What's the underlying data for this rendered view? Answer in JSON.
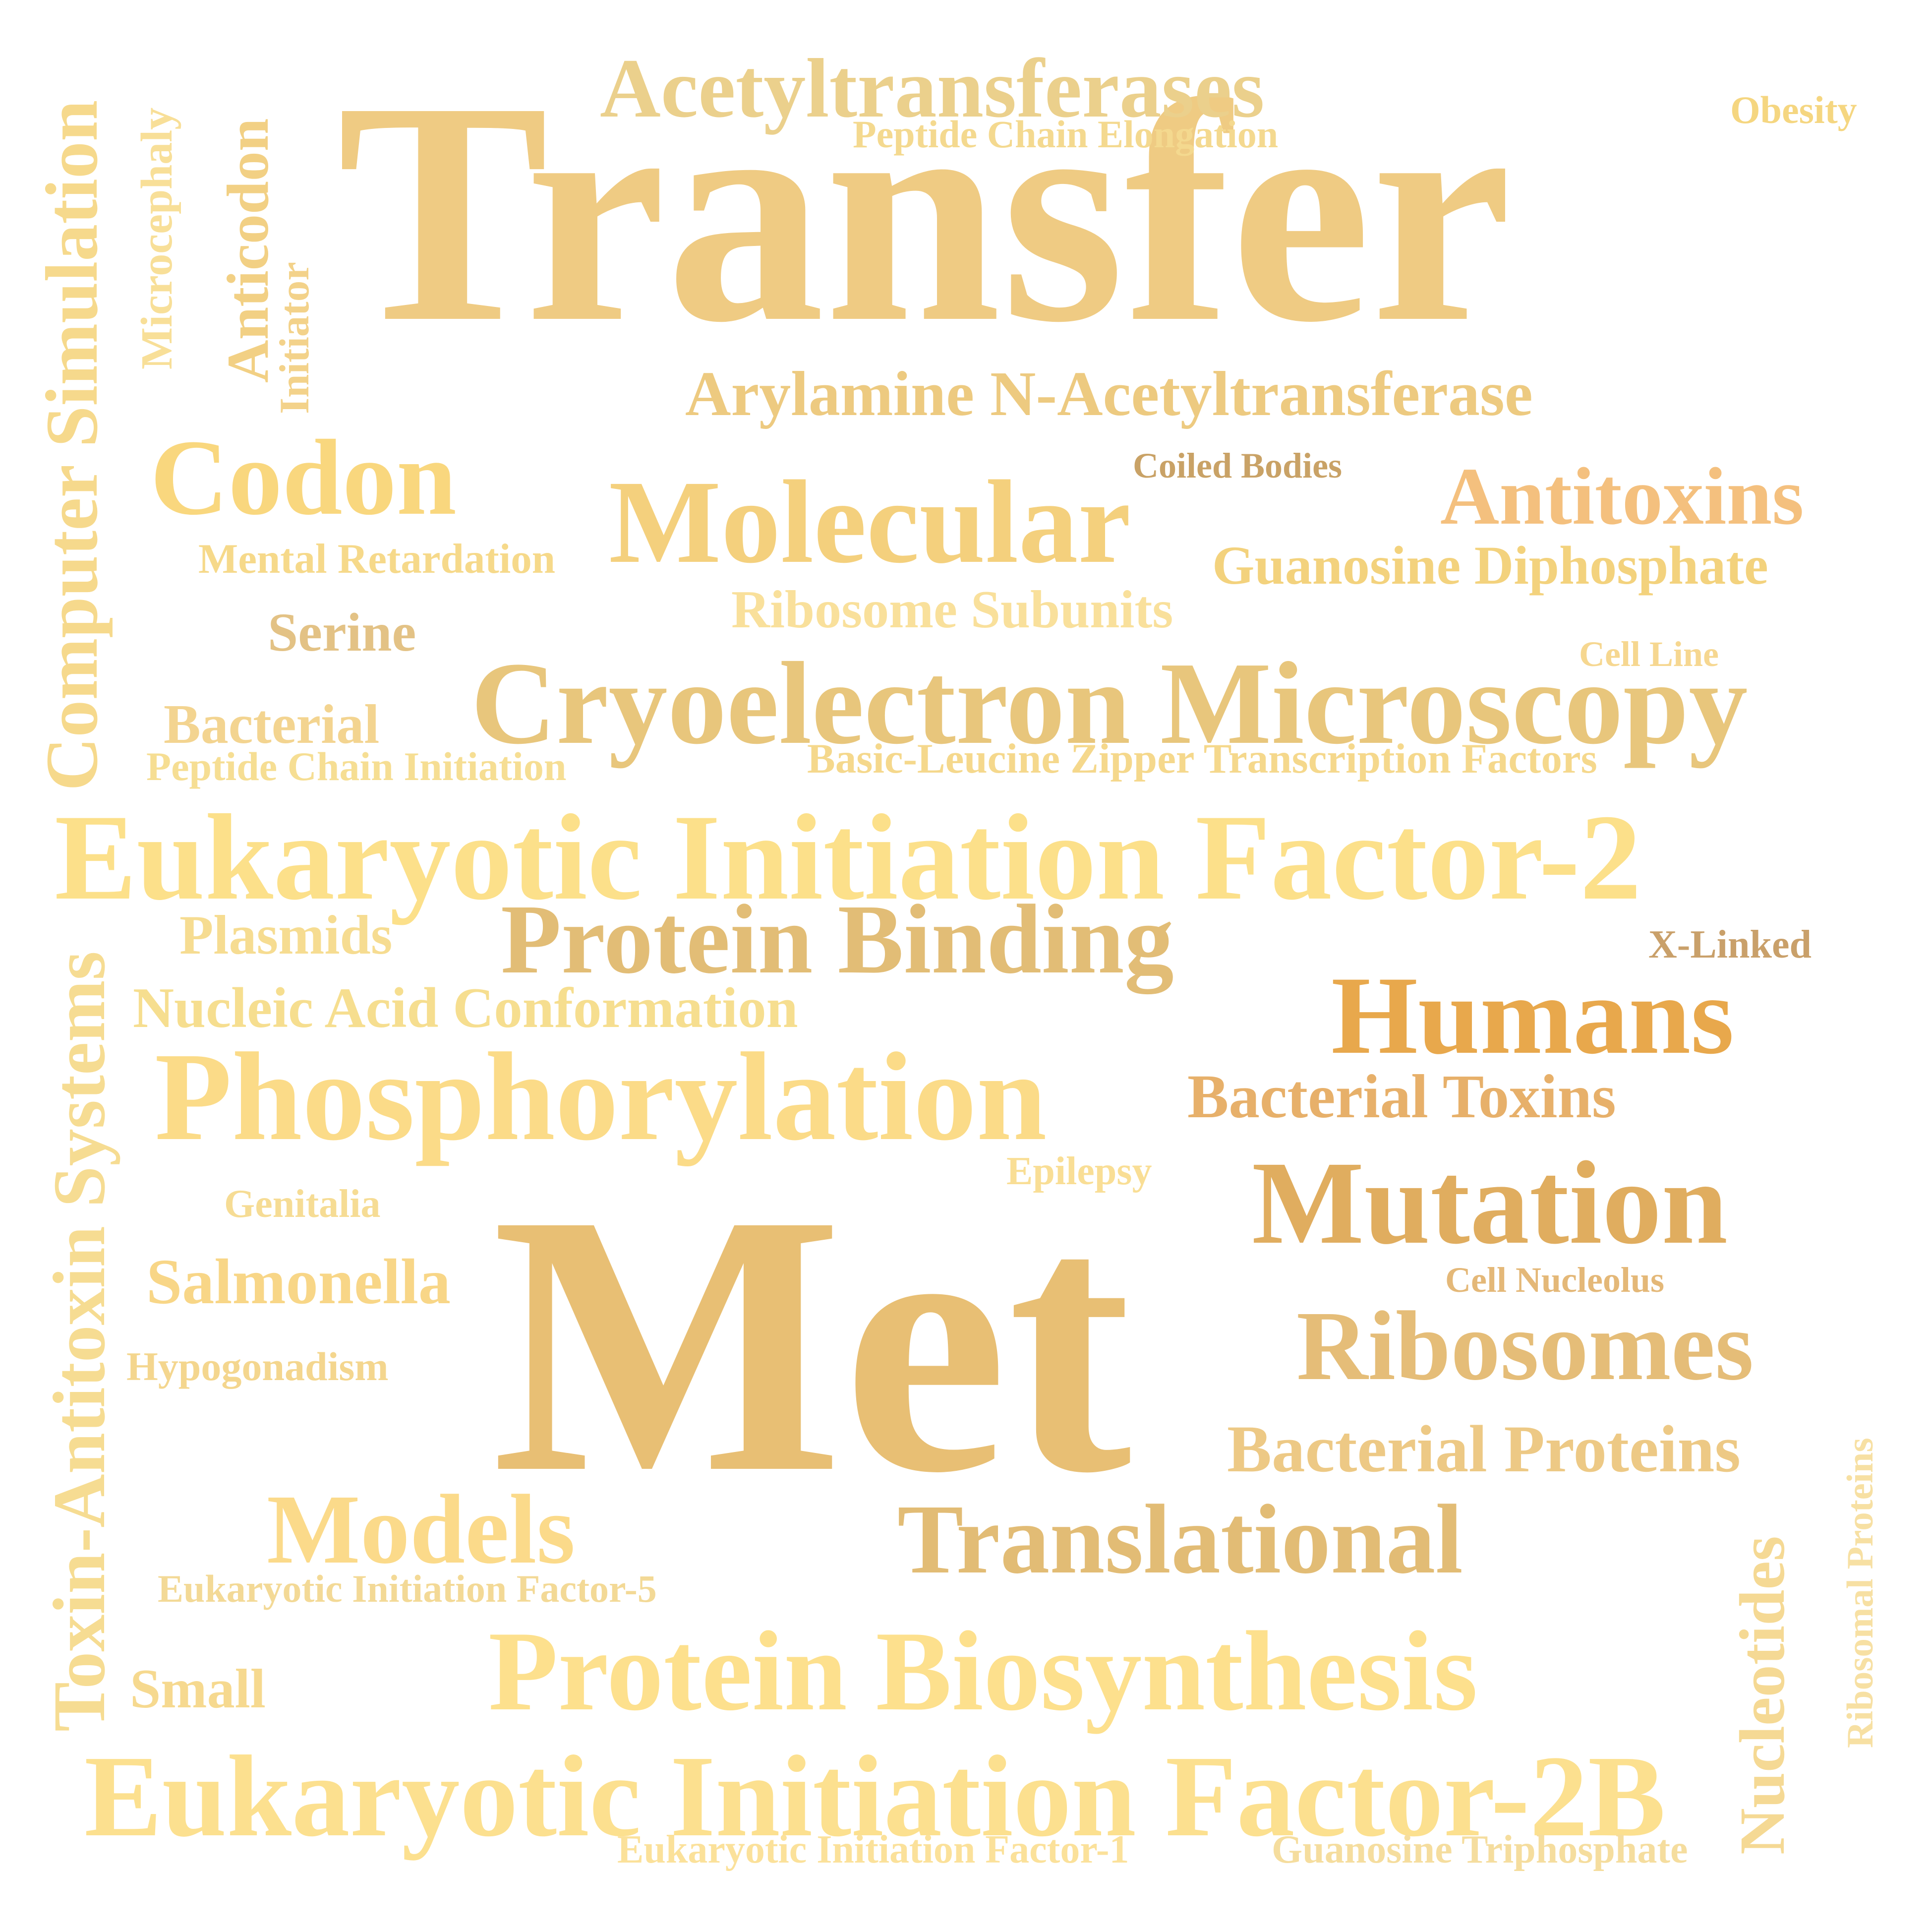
{
  "words": [
    {
      "text": "Transfer",
      "color": "#EFCB83"
    },
    {
      "text": "Met",
      "color": "#E8BF74"
    },
    {
      "text": "Acetyltransferases",
      "color": "#EBD08C"
    },
    {
      "text": "Peptide Chain Elongation",
      "color": "#F4D98F"
    },
    {
      "text": "Obesity",
      "color": "#F5D680"
    },
    {
      "text": "Arylamine N-Acetyltransferase",
      "color": "#EDCA80"
    },
    {
      "text": "Codon",
      "color": "#F9D77E"
    },
    {
      "text": "Coiled Bodies",
      "color": "#C9A266"
    },
    {
      "text": "Molecular",
      "color": "#F4D07D"
    },
    {
      "text": "Antitoxins",
      "color": "#F4C07E"
    },
    {
      "text": "Mental Retardation",
      "color": "#F6D98A"
    },
    {
      "text": "Guanosine Diphosphate",
      "color": "#F3D27D"
    },
    {
      "text": "Ribosome Subunits",
      "color": "#F9E09B"
    },
    {
      "text": "Serine",
      "color": "#E3C285"
    },
    {
      "text": "Cell Line",
      "color": "#F6D790"
    },
    {
      "text": "Cryoelectron Microscopy",
      "color": "#E8C67C"
    },
    {
      "text": "Bacterial",
      "color": "#F3D490"
    },
    {
      "text": "Peptide Chain Initiation",
      "color": "#F6DE93"
    },
    {
      "text": "Basic-Leucine Zipper Transcription Factors",
      "color": "#F5D88C"
    },
    {
      "text": "Eukaryotic Initiation Factor-2",
      "color": "#FCE08A"
    },
    {
      "text": "Plasmids",
      "color": "#F6DC91"
    },
    {
      "text": "Protein Binding",
      "color": "#E2BD76"
    },
    {
      "text": "X-Linked",
      "color": "#C9A06A"
    },
    {
      "text": "Nucleic Acid Conformation",
      "color": "#F6DE8F"
    },
    {
      "text": "Humans",
      "color": "#E8A84C"
    },
    {
      "text": "Phosphorylation",
      "color": "#FBDB88"
    },
    {
      "text": "Bacterial Toxins",
      "color": "#E7B06A"
    },
    {
      "text": "Epilepsy",
      "color": "#F9DE95"
    },
    {
      "text": "Genitalia",
      "color": "#F6DC94"
    },
    {
      "text": "Mutation",
      "color": "#E0AD5F"
    },
    {
      "text": "Salmonella",
      "color": "#F8D687"
    },
    {
      "text": "Cell Nucleolus",
      "color": "#E4B878"
    },
    {
      "text": "Ribosomes",
      "color": "#E5BD78"
    },
    {
      "text": "Hypogonadism",
      "color": "#F4D68E"
    },
    {
      "text": "Bacterial Proteins",
      "color": "#EDC985"
    },
    {
      "text": "Models",
      "color": "#FBDA8A"
    },
    {
      "text": "Translational",
      "color": "#E2BC75"
    },
    {
      "text": "Eukaryotic Initiation Factor-5",
      "color": "#F3D996"
    },
    {
      "text": "Protein Biosynthesis",
      "color": "#FDE08D"
    },
    {
      "text": "Small",
      "color": "#F6D98F"
    },
    {
      "text": "Eukaryotic Initiation Factor-2B",
      "color": "#FCE08F"
    },
    {
      "text": "Eukaryotic Initiation Factor-1",
      "color": "#FBE19A"
    },
    {
      "text": "Guanosine Triphosphate",
      "color": "#F5DD9E"
    },
    {
      "text": "Computer Simulation",
      "color": "#F6D98C"
    },
    {
      "text": "Microcephaly",
      "color": "#F8DF98"
    },
    {
      "text": "Anticodon",
      "color": "#F2D084"
    },
    {
      "text": "Initiator",
      "color": "#F3D28A"
    },
    {
      "text": "Toxin-Antitoxin Systems",
      "color": "#F6DC92"
    },
    {
      "text": "Nucleotides",
      "color": "#F5D994"
    },
    {
      "text": "Ribosomal Proteins",
      "color": "#F7E0A3"
    }
  ]
}
